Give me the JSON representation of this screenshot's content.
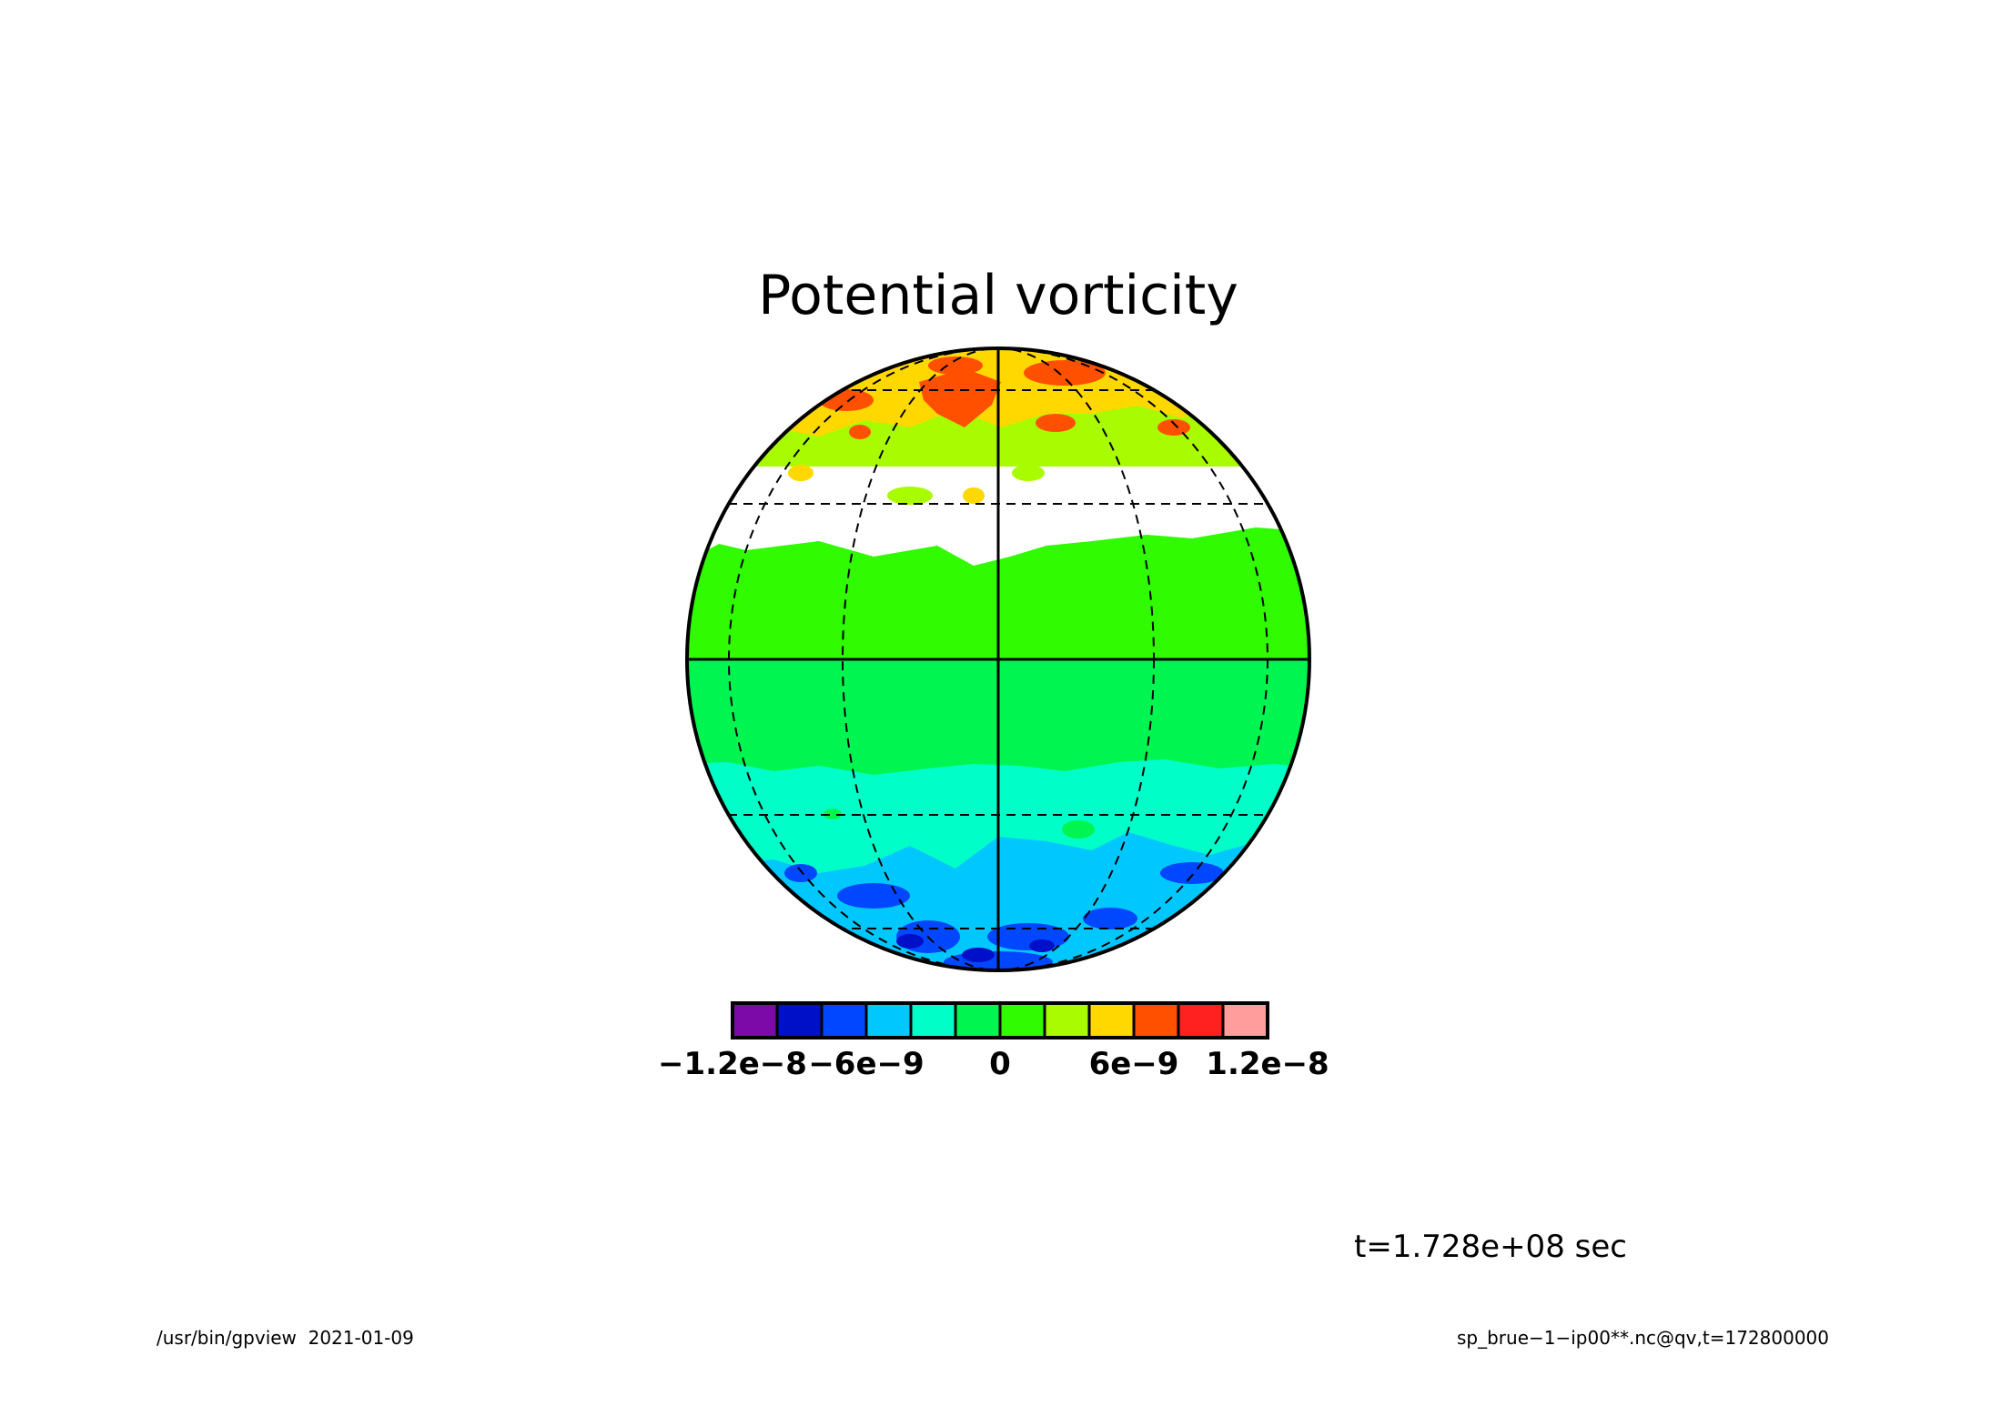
{
  "chart_data": {
    "type": "heatmap",
    "title": "Potential vorticity",
    "projection": "orthographic",
    "grid": true,
    "legend": "bottom",
    "colorbar": {
      "ticks": [
        "−1.2e−8",
        "−6e−9",
        "0",
        "6e−9",
        "1.2e−8"
      ],
      "colors": [
        "#7b0aa8",
        "#0010c8",
        "#0047ff",
        "#00c8ff",
        "#00ffc8",
        "#00f550",
        "#30fb00",
        "#a8fb00",
        "#ffd800",
        "#ff5000",
        "#ff2020",
        "#ff9c9c"
      ]
    },
    "bands": [
      {
        "lat_range": [
          60,
          90
        ],
        "dominant": "#ffd800",
        "patches": "#ff5000"
      },
      {
        "lat_range": [
          30,
          60
        ],
        "dominant": "#a8fb00"
      },
      {
        "lat_range": [
          0,
          30
        ],
        "dominant": "#30fb00"
      },
      {
        "lat_range": [
          -30,
          0
        ],
        "dominant": "#00f550"
      },
      {
        "lat_range": [
          -60,
          -30
        ],
        "dominant": "#00ffc8"
      },
      {
        "lat_range": [
          -90,
          -60
        ],
        "dominant": "#00c8ff",
        "patches": "#0047ff"
      }
    ]
  },
  "annotation": {
    "time": "t=1.728e+08 sec"
  },
  "footer": {
    "left": "/usr/bin/gpview  2021-01-09",
    "right": "sp_brue−1−ip00**.nc@qv,t=172800000"
  }
}
